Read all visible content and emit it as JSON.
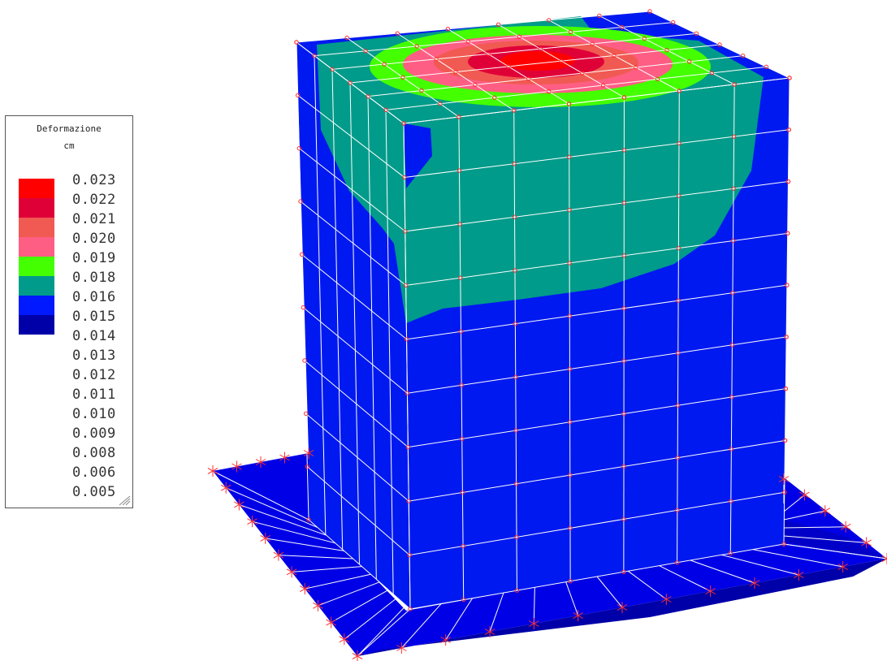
{
  "legend": {
    "title": "Deformazione",
    "unit": "cm",
    "values": [
      "0.023",
      "0.022",
      "0.021",
      "0.020",
      "0.019",
      "0.018",
      "0.016",
      "0.015",
      "0.014",
      "0.013",
      "0.012",
      "0.011",
      "0.010",
      "0.009",
      "0.008",
      "0.006",
      "0.005"
    ],
    "swatch_colors": [
      "#ff0000",
      "#e00038",
      "#f05a52",
      "#ff5e84",
      "#44ff00",
      "#009b8a",
      "#0019ff",
      "#0000a8"
    ]
  },
  "colors": {
    "base_plate": "#0000e6",
    "base_plate_dark": "#0000a8",
    "wall": "#0019f0",
    "wall_top": "#0019f0",
    "contour_teal": "#009b8a",
    "contour_green": "#44ff00",
    "contour_pink": "#ff5e84",
    "contour_salmon": "#f05a52",
    "contour_crimson": "#e00038",
    "contour_red": "#ff0000",
    "mesh_line": "#ffffff",
    "node_marker": "#ff3030",
    "support_marker": "#ff3030"
  },
  "icons": {
    "node": "circle-node-icon",
    "support": "star-support-icon",
    "resize": "resize-grip-icon"
  }
}
